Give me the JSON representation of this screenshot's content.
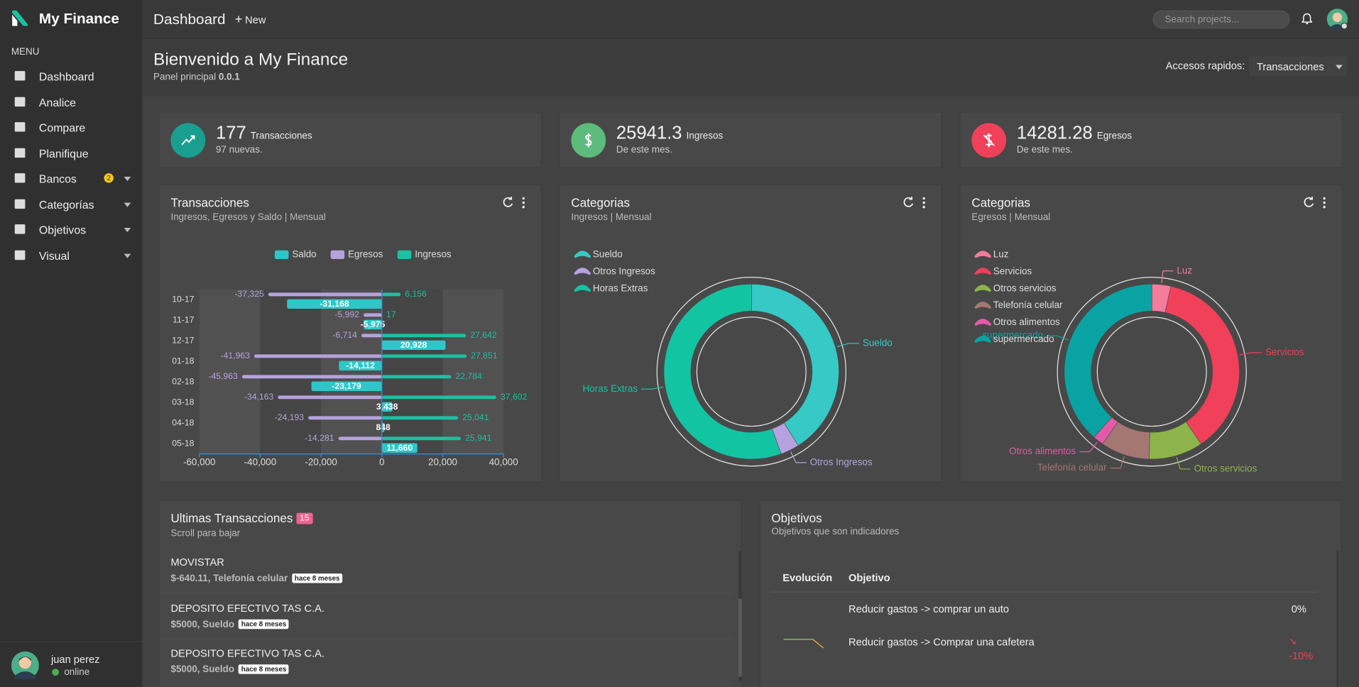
{
  "brand": "My Finance",
  "topbar": {
    "title": "Dashboard",
    "new": "New",
    "search": "Search projects..."
  },
  "sidebar": {
    "menu_title": "MENU",
    "items": [
      {
        "label": "Dashboard"
      },
      {
        "label": "Analice"
      },
      {
        "label": "Compare"
      },
      {
        "label": "Planifique"
      },
      {
        "label": "Bancos",
        "badge": 2,
        "expandable": true
      },
      {
        "label": "Categorías",
        "expandable": true
      },
      {
        "label": "Objetivos",
        "expandable": true
      },
      {
        "label": "Visual",
        "expandable": true
      }
    ],
    "user": {
      "name": "juan perez",
      "status": "online"
    }
  },
  "header": {
    "title": "Bienvenido a My Finance",
    "subtitle": "Panel principal",
    "version": "0.0.1",
    "quick_access_label": "Accesos rapidos:",
    "quick_access_value": "Transacciones"
  },
  "stats": [
    {
      "value": 177,
      "label": "Transacciones",
      "note": "97 nuevas.",
      "color": "#1a9e8f"
    },
    {
      "value": 25941.3,
      "label": "Ingresos",
      "note": "De este mes.",
      "color": "#5dbb7b"
    },
    {
      "value": 14281.28,
      "label": "Egresos",
      "note": "De este mes.",
      "color": "#f0405a"
    }
  ],
  "chart_data": [
    {
      "type": "bar",
      "orientation": "horizontal",
      "title": "Transacciones",
      "subtitle": "Ingresos, Egresos y Saldo | Mensual",
      "categories": [
        "10-17",
        "11-17",
        "12-17",
        "01-18",
        "02-18",
        "03-18",
        "04-18",
        "05-18"
      ],
      "series": [
        {
          "name": "Saldo",
          "color": "#2ec7c9",
          "label_position": "inside",
          "values": [
            -31168,
            -5975,
            20928,
            -14112,
            -23179,
            3438,
            848,
            11660
          ],
          "value_labels": [
            "-31,168",
            "-5,975",
            "20,928",
            "-14,112",
            "-23,179",
            "3,438",
            "848",
            "11,660"
          ]
        },
        {
          "name": "Egresos",
          "color": "#b6a2de",
          "label_position": "outside",
          "values": [
            -37325,
            -5992,
            -6714,
            -41963,
            -45963,
            -34163,
            -24193,
            -14281
          ],
          "value_labels": [
            "-37,325",
            "-5,992",
            "-6,714",
            "-41,963",
            "-45,963",
            "-34,163",
            "-24,193",
            "-14,281"
          ]
        },
        {
          "name": "Ingresos",
          "color": "#1dc0a0",
          "label_position": "outside",
          "values": [
            6156,
            17,
            27642,
            27851,
            22784,
            37602,
            25041,
            25941
          ],
          "value_labels": [
            "6,156",
            "17",
            "27,642",
            "27,851",
            "22,784",
            "37,602",
            "25,041",
            "25,941"
          ]
        }
      ],
      "xlim": [
        -60000,
        40000
      ],
      "xticks": [
        {
          "value": -60000,
          "label": "-60,000"
        },
        {
          "value": -40000,
          "label": "-40,000"
        },
        {
          "value": -20000,
          "label": "-20,000"
        },
        0,
        {
          "value": 20000,
          "label": "20,000"
        },
        {
          "value": 40000,
          "label": "40,000"
        }
      ],
      "legend": "top",
      "grid": true
    },
    {
      "type": "doughnut",
      "title": "Categorias",
      "subtitle": "Ingresos | Mensual",
      "categories": [
        "Sueldo",
        "Otros Ingresos",
        "Horas Extras"
      ],
      "values": [
        41,
        3.5,
        55.5
      ],
      "colors": [
        "#36c9c6",
        "#b6a2de",
        "#13c4a3"
      ],
      "legend": "top-left"
    },
    {
      "type": "doughnut",
      "title": "Categorias",
      "subtitle": "Egresos | Mensual",
      "categories": [
        "Luz",
        "Servicios",
        "Otros servicios",
        "Telefonía celular",
        "Otros alimentos",
        "supermercado"
      ],
      "values": [
        3.5,
        37,
        10,
        9,
        2,
        38.5
      ],
      "colors": [
        "#f47c9c",
        "#f0405a",
        "#8db44a",
        "#a47773",
        "#e35ba8",
        "#0aa3a3"
      ],
      "legend": "top-left"
    }
  ],
  "transactions": {
    "title": "Ultimas Transacciones",
    "count": 15,
    "subtitle": "Scroll para bajar",
    "items": [
      {
        "name": "MOVISTAR",
        "detail": "$-640.11, Telefonía celular",
        "time": "hace 8 meses"
      },
      {
        "name": "DEPOSITO EFECTIVO TAS C.A.",
        "detail": "$5000, Sueldo",
        "time": "hace 8 meses"
      },
      {
        "name": "DEPOSITO EFECTIVO TAS C.A.",
        "detail": "$5000, Sueldo",
        "time": "hace 8 meses"
      }
    ]
  },
  "objectives": {
    "title": "Objetivos",
    "subtitle": "Objetivos que son indicadores",
    "columns": [
      "Evolución",
      "Objetivo"
    ],
    "rows": [
      {
        "objective": "Reducir gastos -> comprar un auto",
        "progress": "0%"
      },
      {
        "objective": "Reducir gastos -> Comprar una cafetera",
        "progress": "-10%"
      }
    ]
  }
}
